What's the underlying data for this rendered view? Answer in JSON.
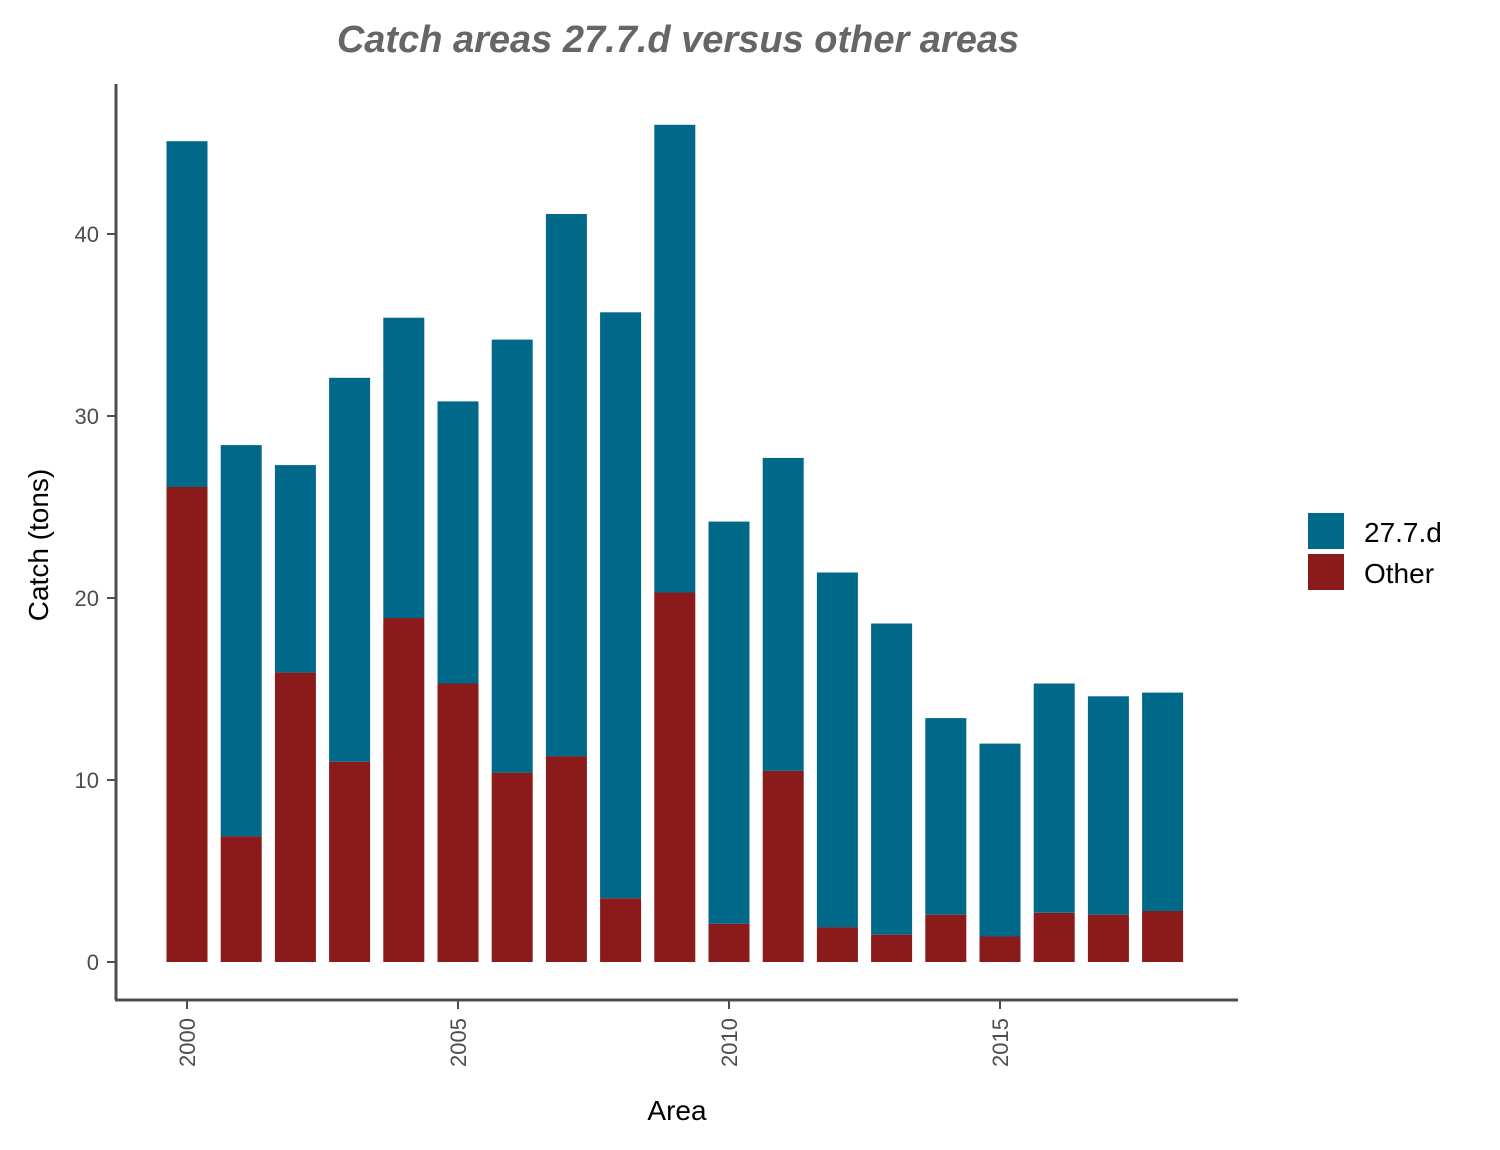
{
  "chart_data": {
    "type": "bar",
    "stacked": true,
    "title": "Catch areas 27.7.d versus other areas",
    "xlabel": "Area",
    "ylabel": "Catch (tons)",
    "x": [
      2000,
      2001,
      2002,
      2003,
      2004,
      2005,
      2006,
      2007,
      2008,
      2009,
      2010,
      2011,
      2012,
      2013,
      2014,
      2015,
      2016,
      2017,
      2018
    ],
    "xticks": [
      "2000",
      "2005",
      "2010",
      "2015"
    ],
    "yticks": [
      "0",
      "10",
      "20",
      "30",
      "40"
    ],
    "ylim": [
      -2.1,
      48.7
    ],
    "series": [
      {
        "name": "Other",
        "color": "#8b1a1a",
        "values": [
          26.1,
          6.9,
          15.9,
          11.0,
          18.9,
          15.3,
          10.4,
          11.3,
          3.5,
          20.3,
          2.1,
          10.5,
          1.9,
          1.5,
          2.6,
          1.4,
          2.7,
          2.6,
          2.8
        ]
      },
      {
        "name": "27.7.d",
        "color": "#006888",
        "values": [
          19.0,
          21.5,
          11.4,
          21.1,
          16.5,
          15.5,
          23.8,
          29.8,
          32.2,
          25.7,
          22.1,
          17.2,
          19.5,
          17.1,
          10.8,
          10.6,
          12.6,
          12.0,
          12.0
        ]
      }
    ],
    "legend": [
      "27.7.d",
      "Other"
    ],
    "legend_position": "right",
    "grid": false
  }
}
